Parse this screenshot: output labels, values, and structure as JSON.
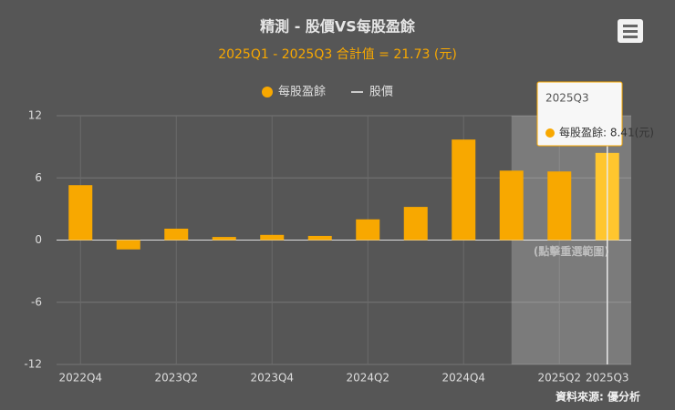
{
  "chart_data": {
    "type": "bar",
    "title": "精測 - 股價VS每股盈餘",
    "subtitle": "2025Q1 - 2025Q3 合計值 = 21.73 (元)",
    "categories": [
      "2022Q4",
      null,
      "2023Q2",
      null,
      "2023Q4",
      null,
      "2024Q2",
      null,
      "2024Q4",
      null,
      "2025Q2",
      "2025Q3"
    ],
    "series": [
      {
        "name": "每股盈餘",
        "color": "#f8a800",
        "values": [
          5.3,
          -0.9,
          1.1,
          0.3,
          0.5,
          0.4,
          2.0,
          3.2,
          9.7,
          6.7,
          6.62,
          8.41
        ]
      },
      {
        "name": "股價",
        "color": "#cccccc",
        "values": [
          null,
          null,
          null,
          null,
          null,
          null,
          null,
          null,
          null,
          null,
          null,
          null
        ]
      }
    ],
    "ylim": [
      -12,
      12
    ],
    "yticks": [
      -12,
      -6,
      0,
      6,
      12
    ],
    "grid": true,
    "selection_hint": "(點擊重選範圍)",
    "tooltip": {
      "title": "2025Q3",
      "text": "每股盈餘: 8.41(元)"
    },
    "source": "資料來源: 優分析"
  }
}
